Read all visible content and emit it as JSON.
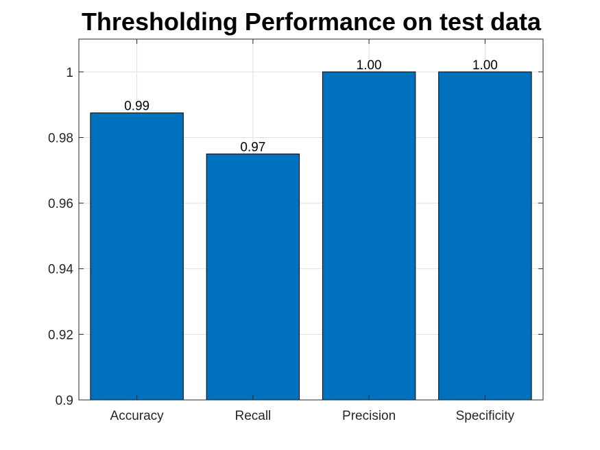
{
  "chart_data": {
    "type": "bar",
    "title": "Thresholding Performance on test data",
    "xlabel": "",
    "ylabel": "",
    "categories": [
      "Accuracy",
      "Recall",
      "Precision",
      "Specificity"
    ],
    "values": [
      0.9875,
      0.975,
      1.0,
      1.0
    ],
    "data_labels": [
      "0.99",
      "0.97",
      "1.00",
      "1.00"
    ],
    "ylim": [
      0.9,
      1.01
    ],
    "yticks": [
      0.9,
      0.92,
      0.94,
      0.96,
      0.98,
      1.0
    ],
    "ytick_labels": [
      "0.9",
      "0.92",
      "0.94",
      "0.96",
      "0.98",
      "1"
    ],
    "grid": true,
    "bar_color": "#0072BD",
    "bar_edge_color": "#000000",
    "grid_color": "#DFDFDF",
    "axis_color": "#262626"
  }
}
